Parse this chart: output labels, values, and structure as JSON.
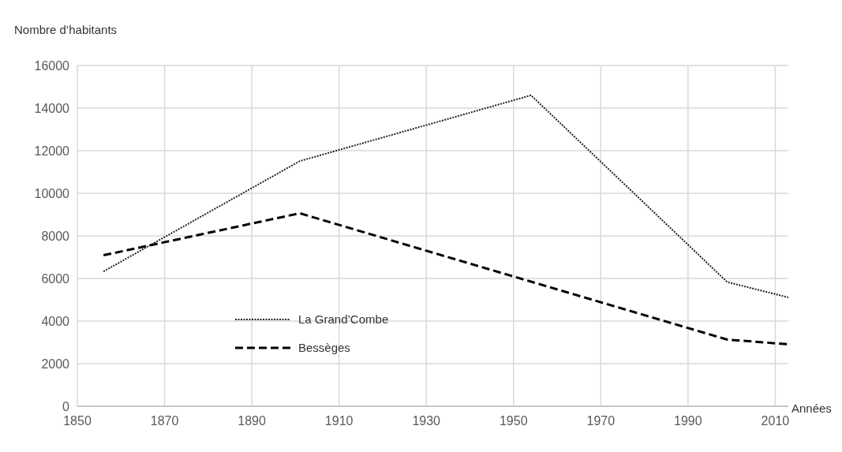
{
  "chart_data": {
    "type": "line",
    "xlabel": "Années",
    "ylabel": "Nombre d’habitants",
    "xlim": [
      1850,
      2013
    ],
    "xticks": [
      1850,
      1870,
      1890,
      1910,
      1930,
      1950,
      1970,
      1990,
      2010
    ],
    "ylim": [
      0,
      16000
    ],
    "yticks": [
      0,
      2000,
      4000,
      6000,
      8000,
      10000,
      12000,
      14000,
      16000
    ],
    "grid": true,
    "legend": "bottom left",
    "series": [
      {
        "name": "La Grand’Combe",
        "color": "#222222",
        "line_style": "dotted",
        "x": [
          1856,
          1901,
          1954,
          1999,
          2013
        ],
        "values": [
          6330,
          11510,
          14600,
          5830,
          5110
        ]
      },
      {
        "name": "Bessèges",
        "color": "#000000",
        "line_style": "dashed",
        "x": [
          1856,
          1901,
          1954,
          1999,
          2013
        ],
        "values": [
          7090,
          9060,
          5850,
          3130,
          2910
        ]
      }
    ]
  }
}
